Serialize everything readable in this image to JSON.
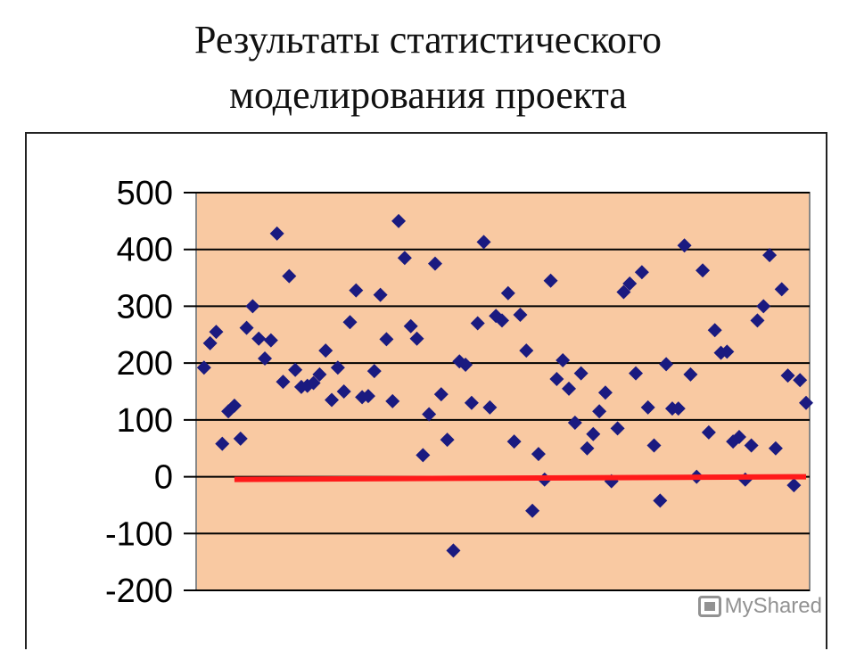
{
  "slide": {
    "title_line1": "Результаты статистического",
    "title_line2": "моделирования проекта"
  },
  "watermark": {
    "text": "MyShared",
    "icon": "presentation-icon"
  },
  "chart_data": {
    "type": "scatter",
    "title": "",
    "xlabel": "",
    "ylabel": "",
    "ylim": [
      -200,
      500
    ],
    "yticks": [
      "500",
      "400",
      "300",
      "200",
      "100",
      "0",
      "-100",
      "-200"
    ],
    "xlim": [
      0,
      100
    ],
    "grid": true,
    "legend": "none",
    "plot_background": "#f9c9a2",
    "marker_color": "#1a1a80",
    "reference_line": {
      "y": 0,
      "x_start": 6,
      "x_end": 100,
      "color": "#ff1a1a"
    },
    "series": [
      {
        "marker": "diamond",
        "points": [
          [
            1,
            192
          ],
          [
            2,
            235
          ],
          [
            3,
            255
          ],
          [
            4,
            58
          ],
          [
            5,
            115
          ],
          [
            6,
            125
          ],
          [
            7,
            67
          ],
          [
            8,
            262
          ],
          [
            9,
            300
          ],
          [
            10,
            243
          ],
          [
            11,
            208
          ],
          [
            12,
            240
          ],
          [
            13,
            428
          ],
          [
            14,
            167
          ],
          [
            15,
            353
          ],
          [
            16,
            188
          ],
          [
            17,
            158
          ],
          [
            18,
            160
          ],
          [
            19,
            165
          ],
          [
            20,
            180
          ],
          [
            21,
            222
          ],
          [
            22,
            135
          ],
          [
            23,
            192
          ],
          [
            24,
            150
          ],
          [
            25,
            272
          ],
          [
            26,
            328
          ],
          [
            27,
            140
          ],
          [
            28,
            142
          ],
          [
            29,
            186
          ],
          [
            30,
            320
          ],
          [
            31,
            242
          ],
          [
            32,
            133
          ],
          [
            33,
            450
          ],
          [
            34,
            385
          ],
          [
            35,
            265
          ],
          [
            36,
            243
          ],
          [
            37,
            38
          ],
          [
            38,
            110
          ],
          [
            39,
            375
          ],
          [
            40,
            145
          ],
          [
            41,
            65
          ],
          [
            42,
            -130
          ],
          [
            43,
            203
          ],
          [
            44,
            197
          ],
          [
            45,
            130
          ],
          [
            46,
            270
          ],
          [
            47,
            413
          ],
          [
            48,
            122
          ],
          [
            49,
            283
          ],
          [
            50,
            275
          ],
          [
            51,
            323
          ],
          [
            52,
            62
          ],
          [
            53,
            285
          ],
          [
            54,
            222
          ],
          [
            55,
            -60
          ],
          [
            56,
            40
          ],
          [
            57,
            -5
          ],
          [
            58,
            345
          ],
          [
            59,
            172
          ],
          [
            60,
            205
          ],
          [
            61,
            155
          ],
          [
            62,
            95
          ],
          [
            63,
            182
          ],
          [
            64,
            50
          ],
          [
            65,
            75
          ],
          [
            66,
            115
          ],
          [
            67,
            148
          ],
          [
            68,
            -8
          ],
          [
            69,
            85
          ],
          [
            70,
            325
          ],
          [
            71,
            340
          ],
          [
            72,
            182
          ],
          [
            73,
            360
          ],
          [
            74,
            122
          ],
          [
            75,
            55
          ],
          [
            76,
            -42
          ],
          [
            77,
            198
          ],
          [
            78,
            120
          ],
          [
            79,
            120
          ],
          [
            80,
            407
          ],
          [
            81,
            180
          ],
          [
            82,
            0
          ],
          [
            83,
            363
          ],
          [
            84,
            78
          ],
          [
            85,
            258
          ],
          [
            86,
            218
          ],
          [
            87,
            220
          ],
          [
            88,
            62
          ],
          [
            89,
            70
          ],
          [
            90,
            -5
          ],
          [
            91,
            55
          ],
          [
            92,
            275
          ],
          [
            93,
            300
          ],
          [
            94,
            390
          ],
          [
            95,
            50
          ],
          [
            96,
            330
          ],
          [
            97,
            178
          ],
          [
            98,
            -15
          ],
          [
            99,
            170
          ],
          [
            100,
            130
          ]
        ]
      }
    ]
  }
}
